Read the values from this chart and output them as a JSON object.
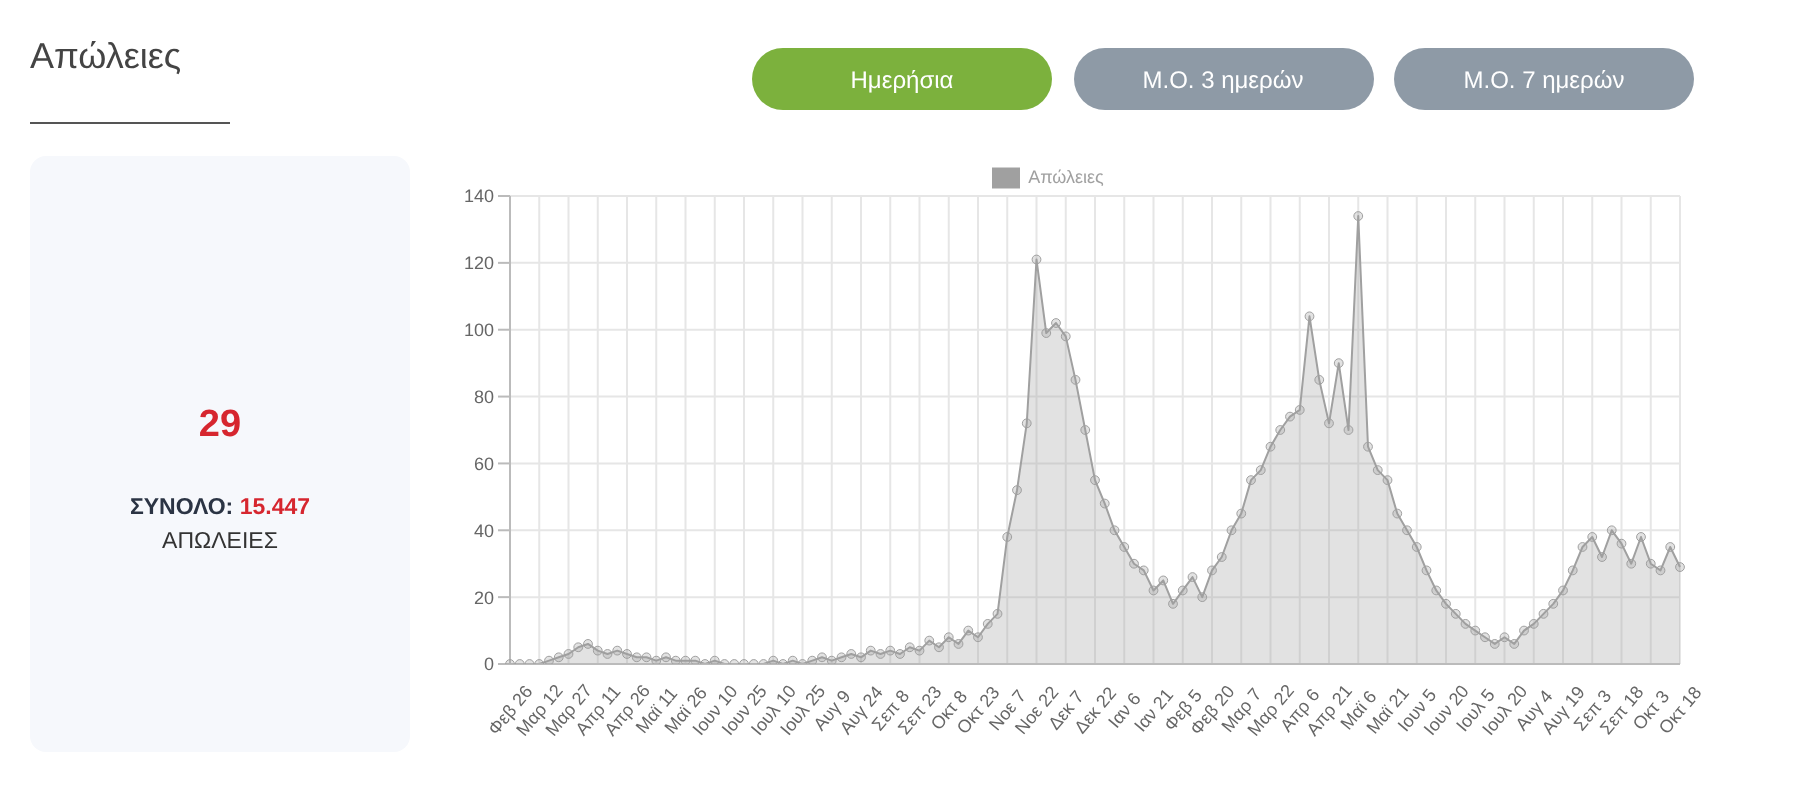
{
  "chart_data": [
    {
      "type": "other",
      "title": "Απώλειες",
      "annotations": [
        "29",
        "ΣΥΝΟΛΟ:",
        "15.447",
        "ΑΠΩΛΕΙΕΣ"
      ]
    },
    {
      "type": "area",
      "annotations": [
        "Ημερήσια",
        "Μ.Ο. 3 ημερών",
        "Μ.Ο. 7 ημερών"
      ],
      "categories": [
        "Φεβ 26",
        null,
        null,
        "Μαρ 12",
        null,
        null,
        "Μαρ 27",
        null,
        null,
        "Απρ 11",
        null,
        null,
        "Απρ 26",
        null,
        null,
        "Μαϊ 11",
        null,
        null,
        "Μαϊ 26",
        null,
        null,
        "Ιουν 10",
        null,
        null,
        "Ιουν 25",
        null,
        null,
        "Ιουλ 10",
        null,
        null,
        "Ιουλ 25",
        null,
        null,
        "Αυγ 9",
        null,
        null,
        "Αυγ 24",
        null,
        null,
        "Σεπ 8",
        null,
        null,
        "Σεπ 23",
        null,
        null,
        "Οκτ 8",
        null,
        null,
        "Οκτ 23",
        null,
        null,
        "Νοε 7",
        null,
        null,
        "Νοε 22",
        null,
        null,
        "Δεκ 7",
        null,
        null,
        "Δεκ 22",
        null,
        null,
        "Ιαν 6",
        null,
        null,
        "Ιαν 21",
        null,
        null,
        "Φεβ 5",
        null,
        null,
        "Φεβ 20",
        null,
        null,
        "Μαρ 7",
        null,
        null,
        "Μαρ 22",
        null,
        null,
        "Απρ 6",
        null,
        null,
        "Απρ 21",
        null,
        null,
        "Μαϊ 6",
        null,
        null,
        "Μαϊ 21",
        null,
        null,
        "Ιουν 5",
        null,
        null,
        "Ιουν 20",
        null,
        null,
        "Ιουλ 5",
        null,
        null,
        "Ιουλ 20",
        null,
        null,
        "Αυγ 4",
        null,
        null,
        "Αυγ 19",
        null,
        null,
        "Σεπ 3",
        null,
        null,
        "Σεπ 18",
        null,
        null,
        "Οκτ 3",
        null,
        null,
        "Οκτ 18"
      ],
      "series": [
        {
          "name": "Απώλειες",
          "color": "#a0a0a0",
          "values": [
            0,
            0,
            0,
            0,
            1,
            2,
            3,
            5,
            6,
            4,
            3,
            4,
            3,
            2,
            2,
            1,
            2,
            1,
            1,
            1,
            0,
            1,
            0,
            0,
            0,
            0,
            0,
            1,
            0,
            1,
            0,
            1,
            2,
            1,
            2,
            3,
            2,
            4,
            3,
            4,
            3,
            5,
            4,
            7,
            5,
            8,
            6,
            10,
            8,
            12,
            15,
            38,
            52,
            72,
            121,
            99,
            102,
            98,
            85,
            70,
            55,
            48,
            40,
            35,
            30,
            28,
            22,
            25,
            18,
            22,
            26,
            20,
            28,
            32,
            40,
            45,
            55,
            58,
            65,
            70,
            74,
            76,
            104,
            85,
            72,
            90,
            70,
            134,
            65,
            58,
            55,
            45,
            40,
            35,
            28,
            22,
            18,
            15,
            12,
            10,
            8,
            6,
            8,
            6,
            10,
            12,
            15,
            18,
            22,
            28,
            35,
            38,
            32,
            40,
            36,
            30,
            38,
            30,
            28,
            35,
            29
          ]
        }
      ],
      "ylim": [
        0,
        140
      ],
      "yticks": [
        0,
        20,
        40,
        60,
        80,
        100,
        120,
        140
      ],
      "grid": true,
      "legend": "top",
      "marker": "circle"
    }
  ]
}
